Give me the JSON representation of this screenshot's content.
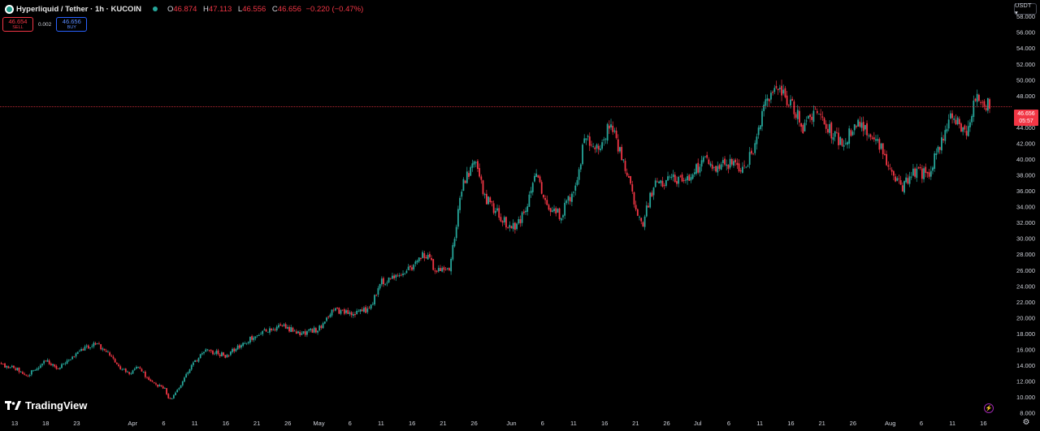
{
  "header": {
    "symbol": "Hyperliquid / Tether · 1h · KUCOIN",
    "ohlc": [
      {
        "key": "O",
        "value": "46.874"
      },
      {
        "key": "H",
        "value": "47.113"
      },
      {
        "key": "L",
        "value": "46.556"
      },
      {
        "key": "C",
        "value": "46.656"
      },
      {
        "key": "",
        "value": "−0.220 (−0.47%)"
      }
    ]
  },
  "trade": {
    "sell_price": "46.654",
    "sell_label": "SELL",
    "spread": "0.002",
    "buy_price": "46.656",
    "buy_label": "BUY"
  },
  "currency": "USDT ▾",
  "price_tag": {
    "price": "46.656",
    "countdown": "05:57"
  },
  "branding": "TradingView",
  "colors": {
    "up": "#26a69a",
    "down": "#f23645",
    "background": "#000000",
    "axis_text": "#d1d4dc"
  },
  "chart_data": {
    "type": "candlestick",
    "title": "Hyperliquid / Tether · 1h · KUCOIN",
    "y_axis_labels": [
      "8.000",
      "10.000",
      "12.000",
      "14.000",
      "16.000",
      "18.000",
      "20.000",
      "22.000",
      "24.000",
      "26.000",
      "28.000",
      "30.000",
      "32.000",
      "34.000",
      "36.000",
      "38.000",
      "40.000",
      "42.000",
      "44.000",
      "46.000",
      "48.000",
      "50.000",
      "52.000",
      "54.000",
      "56.000",
      "58.000"
    ],
    "ylim": [
      7.5,
      59.5
    ],
    "x_axis_labels": [
      "13",
      "18",
      "23",
      "Apr",
      "6",
      "11",
      "16",
      "21",
      "26",
      "May",
      "6",
      "11",
      "16",
      "21",
      "26",
      "Jun",
      "6",
      "11",
      "16",
      "21",
      "26",
      "Jul",
      "6",
      "11",
      "16",
      "21",
      "26",
      "Aug",
      "6",
      "11",
      "16"
    ],
    "x_range": [
      "2025-03-13",
      "2025-08-17"
    ],
    "last_price": 46.656,
    "close_path": [
      {
        "date": "2025-03-10",
        "close": 14.2
      },
      {
        "date": "2025-03-13",
        "close": 13.8
      },
      {
        "date": "2025-03-15",
        "close": 12.8
      },
      {
        "date": "2025-03-18",
        "close": 14.6
      },
      {
        "date": "2025-03-20",
        "close": 13.6
      },
      {
        "date": "2025-03-23",
        "close": 15.6
      },
      {
        "date": "2025-03-26",
        "close": 17.0
      },
      {
        "date": "2025-03-28",
        "close": 15.5
      },
      {
        "date": "2025-03-31",
        "close": 13.0
      },
      {
        "date": "2025-04-02",
        "close": 13.8
      },
      {
        "date": "2025-04-04",
        "close": 11.8
      },
      {
        "date": "2025-04-06",
        "close": 11.3
      },
      {
        "date": "2025-04-07",
        "close": 9.6
      },
      {
        "date": "2025-04-09",
        "close": 12.0
      },
      {
        "date": "2025-04-11",
        "close": 14.5
      },
      {
        "date": "2025-04-13",
        "close": 16.0
      },
      {
        "date": "2025-04-16",
        "close": 15.2
      },
      {
        "date": "2025-04-19",
        "close": 17.0
      },
      {
        "date": "2025-04-22",
        "close": 18.2
      },
      {
        "date": "2025-04-25",
        "close": 19.0
      },
      {
        "date": "2025-04-28",
        "close": 18.0
      },
      {
        "date": "2025-05-01",
        "close": 18.6
      },
      {
        "date": "2025-05-03",
        "close": 21.0
      },
      {
        "date": "2025-05-06",
        "close": 20.5
      },
      {
        "date": "2025-05-09",
        "close": 21.0
      },
      {
        "date": "2025-05-11",
        "close": 24.5
      },
      {
        "date": "2025-05-14",
        "close": 25.6
      },
      {
        "date": "2025-05-16",
        "close": 26.5
      },
      {
        "date": "2025-05-18",
        "close": 28.0
      },
      {
        "date": "2025-05-20",
        "close": 26.0
      },
      {
        "date": "2025-05-22",
        "close": 26.5
      },
      {
        "date": "2025-05-23",
        "close": 31.0
      },
      {
        "date": "2025-05-24",
        "close": 36.5
      },
      {
        "date": "2025-05-26",
        "close": 39.5
      },
      {
        "date": "2025-05-28",
        "close": 35.0
      },
      {
        "date": "2025-05-30",
        "close": 33.0
      },
      {
        "date": "2025-06-01",
        "close": 31.2
      },
      {
        "date": "2025-06-03",
        "close": 33.0
      },
      {
        "date": "2025-06-05",
        "close": 38.0
      },
      {
        "date": "2025-06-07",
        "close": 34.0
      },
      {
        "date": "2025-06-09",
        "close": 33.0
      },
      {
        "date": "2025-06-11",
        "close": 36.0
      },
      {
        "date": "2025-06-13",
        "close": 43.0
      },
      {
        "date": "2025-06-15",
        "close": 41.0
      },
      {
        "date": "2025-06-17",
        "close": 45.0
      },
      {
        "date": "2025-06-19",
        "close": 39.5
      },
      {
        "date": "2025-06-21",
        "close": 34.0
      },
      {
        "date": "2025-06-22",
        "close": 31.5
      },
      {
        "date": "2025-06-24",
        "close": 37.0
      },
      {
        "date": "2025-06-27",
        "close": 37.5
      },
      {
        "date": "2025-06-30",
        "close": 37.5
      },
      {
        "date": "2025-07-02",
        "close": 40.5
      },
      {
        "date": "2025-07-04",
        "close": 39.0
      },
      {
        "date": "2025-07-06",
        "close": 39.5
      },
      {
        "date": "2025-07-08",
        "close": 38.5
      },
      {
        "date": "2025-07-10",
        "close": 41.0
      },
      {
        "date": "2025-07-12",
        "close": 47.5
      },
      {
        "date": "2025-07-14",
        "close": 49.0
      },
      {
        "date": "2025-07-16",
        "close": 47.0
      },
      {
        "date": "2025-07-18",
        "close": 44.0
      },
      {
        "date": "2025-07-20",
        "close": 46.5
      },
      {
        "date": "2025-07-22",
        "close": 44.0
      },
      {
        "date": "2025-07-24",
        "close": 42.0
      },
      {
        "date": "2025-07-27",
        "close": 44.5
      },
      {
        "date": "2025-07-30",
        "close": 42.5
      },
      {
        "date": "2025-08-01",
        "close": 39.0
      },
      {
        "date": "2025-08-03",
        "close": 36.5
      },
      {
        "date": "2025-08-05",
        "close": 38.5
      },
      {
        "date": "2025-08-07",
        "close": 38.0
      },
      {
        "date": "2025-08-09",
        "close": 42.0
      },
      {
        "date": "2025-08-11",
        "close": 45.5
      },
      {
        "date": "2025-08-13",
        "close": 43.0
      },
      {
        "date": "2025-08-15",
        "close": 48.5
      },
      {
        "date": "2025-08-16",
        "close": 47.5
      },
      {
        "date": "2025-08-17",
        "close": 46.656
      }
    ]
  }
}
